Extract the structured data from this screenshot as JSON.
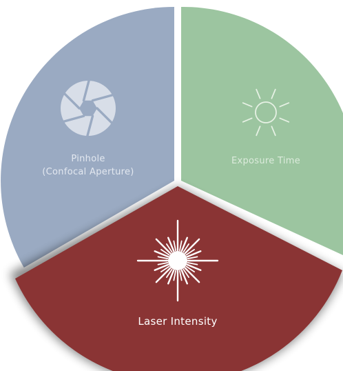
{
  "segments": [
    {
      "id": "pinhole",
      "label_line1": "Pinhole",
      "label_line2": "(Confocal Aperture)",
      "icon": "aperture-icon",
      "color": "#9AAAC2",
      "text_color": "#E3E8F0",
      "icon_color": "#D8DEE8"
    },
    {
      "id": "exposure",
      "label": "Exposure Time",
      "icon": "sun-icon",
      "color": "#9CC5A0",
      "text_color": "#DCEBDC",
      "icon_color": "#E6F1E4"
    },
    {
      "id": "laser",
      "label": "Laser Intensity",
      "icon": "laser-burst-icon",
      "color": "#8A3434",
      "text_color": "#FFFFFF",
      "icon_color": "#FFFFFF"
    }
  ]
}
